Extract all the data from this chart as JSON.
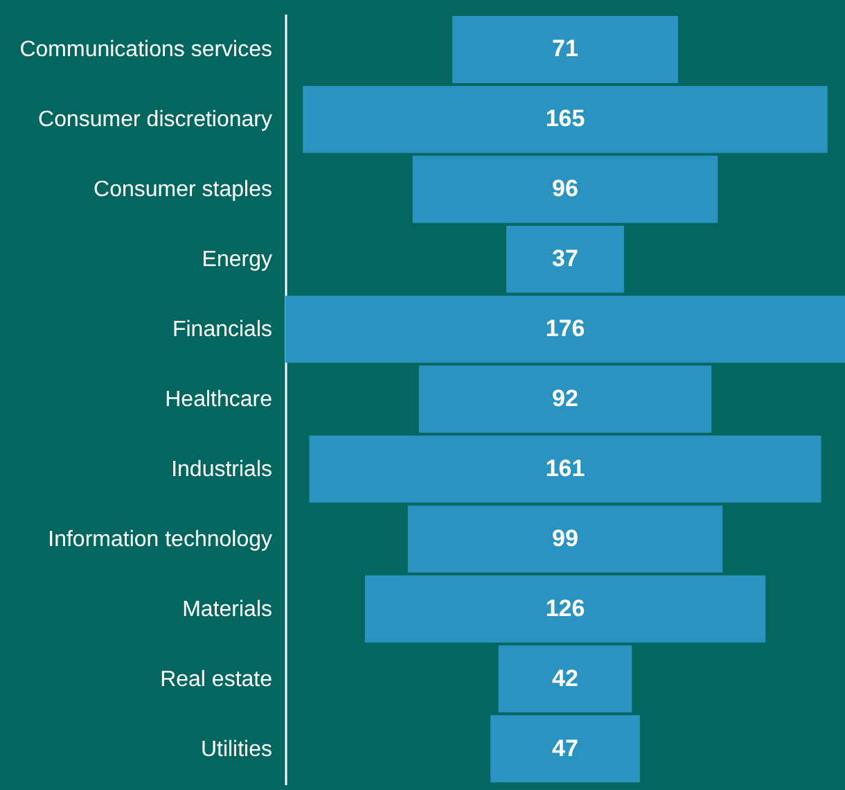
{
  "chart_data": {
    "type": "other",
    "categories": [
      "Communications services",
      "Consumer discretionary",
      "Consumer staples",
      "Energy",
      "Financials",
      "Healthcare",
      "Industrials",
      "Information technology",
      "Materials",
      "Real estate",
      "Utilities"
    ],
    "values": [
      71,
      165,
      96,
      37,
      176,
      92,
      161,
      99,
      126,
      42,
      47
    ],
    "color": "#2a93c0",
    "data_labels": true
  }
}
